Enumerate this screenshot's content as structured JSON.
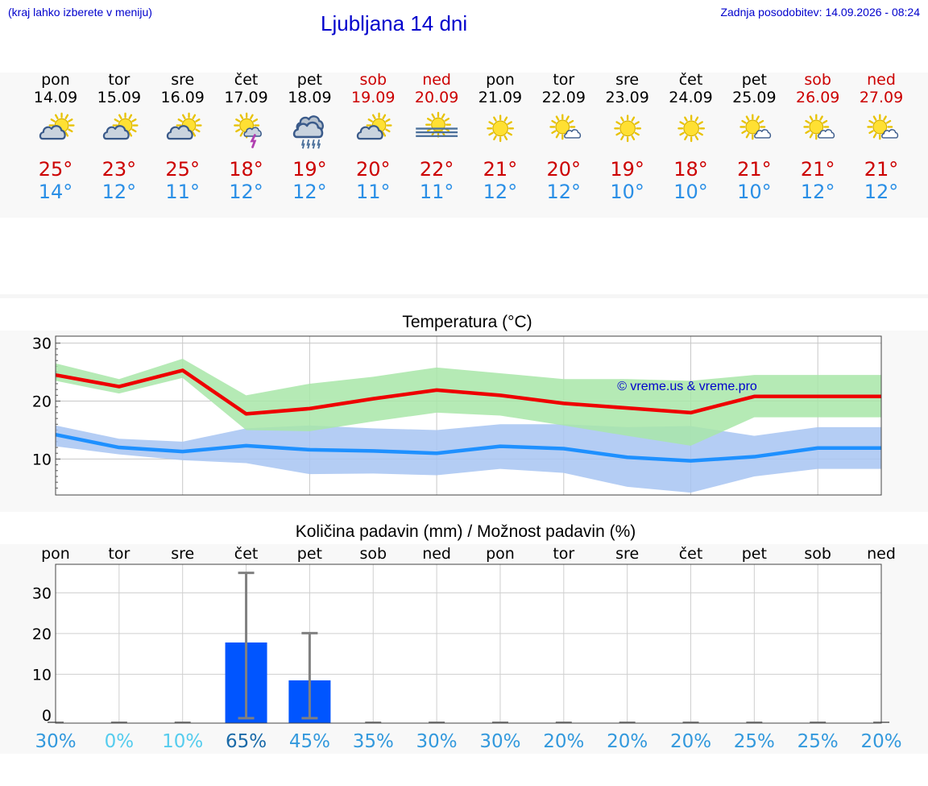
{
  "header": {
    "menu_hint": "(kraj lahko izberete v meniju)",
    "title": "Ljubljana 14 dni",
    "last_update": "Zadnja posodobitev: 14.09.2026 - 08:24"
  },
  "forecast": {
    "days": [
      {
        "name": "pon",
        "date": "14.09",
        "weekend": false,
        "icon": "sun-cloud-icon",
        "hi": "25°",
        "lo": "14°"
      },
      {
        "name": "tor",
        "date": "15.09",
        "weekend": false,
        "icon": "sun-cloud-icon",
        "hi": "23°",
        "lo": "12°"
      },
      {
        "name": "sre",
        "date": "16.09",
        "weekend": false,
        "icon": "sun-cloud-icon",
        "hi": "25°",
        "lo": "11°"
      },
      {
        "name": "čet",
        "date": "17.09",
        "weekend": false,
        "icon": "sun-thunder-icon",
        "hi": "18°",
        "lo": "12°"
      },
      {
        "name": "pet",
        "date": "18.09",
        "weekend": false,
        "icon": "rain-cloud-icon",
        "hi": "19°",
        "lo": "12°"
      },
      {
        "name": "sob",
        "date": "19.09",
        "weekend": true,
        "icon": "sun-cloud-icon",
        "hi": "20°",
        "lo": "11°"
      },
      {
        "name": "ned",
        "date": "20.09",
        "weekend": true,
        "icon": "sun-fog-icon",
        "hi": "22°",
        "lo": "11°"
      },
      {
        "name": "pon",
        "date": "21.09",
        "weekend": false,
        "icon": "sun-icon",
        "hi": "21°",
        "lo": "12°"
      },
      {
        "name": "tor",
        "date": "22.09",
        "weekend": false,
        "icon": "sun-small-cloud-icon",
        "hi": "20°",
        "lo": "12°"
      },
      {
        "name": "sre",
        "date": "23.09",
        "weekend": false,
        "icon": "sun-icon",
        "hi": "19°",
        "lo": "10°"
      },
      {
        "name": "čet",
        "date": "24.09",
        "weekend": false,
        "icon": "sun-icon",
        "hi": "18°",
        "lo": "10°"
      },
      {
        "name": "pet",
        "date": "25.09",
        "weekend": false,
        "icon": "sun-small-cloud-icon",
        "hi": "21°",
        "lo": "10°"
      },
      {
        "name": "sob",
        "date": "26.09",
        "weekend": true,
        "icon": "sun-small-cloud-icon",
        "hi": "21°",
        "lo": "12°"
      },
      {
        "name": "ned",
        "date": "27.09",
        "weekend": true,
        "icon": "sun-small-cloud-icon",
        "hi": "21°",
        "lo": "12°"
      }
    ]
  },
  "colors": {
    "title_blue": "#0000cc",
    "weekend_red": "#cc0000",
    "hi_red": "#cc0000",
    "lo_blue": "#2a8fe6",
    "max_line": "#ee0000",
    "min_line": "#1e90ff",
    "max_band": "#a8e6a8",
    "min_band": "#a7c4f2",
    "bar_blue": "#0055ff",
    "error_gray": "#808080",
    "prob_dark": "#1a6aa8",
    "prob_mid": "#3399dd",
    "prob_light": "#55ccee",
    "watermark": "#0000cc"
  },
  "chart_data": [
    {
      "type": "line",
      "title": "Temperatura (°C)",
      "watermark": "© vreme.us & vreme.pro",
      "ylim": [
        3.8,
        31.2
      ],
      "yticks": [
        10,
        20,
        30
      ],
      "grid": true,
      "x": [
        "14.09",
        "15.09",
        "16.09",
        "17.09",
        "18.09",
        "19.09",
        "20.09",
        "21.09",
        "22.09",
        "23.09",
        "24.09",
        "25.09",
        "26.09",
        "27.09"
      ],
      "series": [
        {
          "role": "max",
          "values": [
            24.5,
            22.5,
            25.3,
            17.8,
            18.7,
            20.4,
            21.9,
            21.0,
            19.6,
            18.8,
            18.0,
            20.8,
            20.8,
            20.8
          ]
        },
        {
          "role": "min",
          "values": [
            14.2,
            12.0,
            11.3,
            12.3,
            11.6,
            11.4,
            11.0,
            12.2,
            11.8,
            10.3,
            9.7,
            10.4,
            11.9,
            11.9
          ]
        },
        {
          "role": "max_range",
          "low": [
            23.5,
            21.3,
            24.0,
            15.0,
            14.8,
            16.5,
            18.0,
            17.5,
            15.8,
            14.0,
            12.3,
            17.2,
            17.2,
            17.2
          ],
          "high": [
            26.5,
            23.8,
            27.3,
            21.0,
            23.0,
            24.2,
            25.8,
            24.8,
            23.8,
            23.8,
            23.5,
            24.5,
            24.5,
            24.5
          ]
        },
        {
          "role": "min_range",
          "low": [
            12.2,
            10.8,
            9.8,
            9.3,
            7.4,
            7.5,
            7.2,
            8.3,
            7.6,
            5.2,
            4.2,
            7.0,
            8.3,
            8.3
          ],
          "high": [
            15.8,
            13.5,
            13.0,
            15.3,
            15.8,
            15.3,
            15.0,
            16.0,
            16.0,
            15.5,
            15.7,
            14.0,
            15.5,
            15.5
          ]
        }
      ]
    },
    {
      "type": "bar",
      "title": "Količina padavin (mm) / Možnost padavin (%)",
      "ylim": [
        -2,
        37
      ],
      "yticks": [
        0,
        10,
        20,
        30
      ],
      "grid": true,
      "categories": [
        "pon",
        "tor",
        "sre",
        "čet",
        "pet",
        "sob",
        "ned",
        "pon",
        "tor",
        "sre",
        "čet",
        "pet",
        "sob",
        "ned"
      ],
      "values": [
        0,
        0,
        0,
        17.8,
        8.5,
        0,
        0,
        0,
        0,
        0,
        0,
        0,
        0,
        0
      ],
      "error_high": [
        0,
        0,
        0,
        34.9,
        20.1,
        0,
        0,
        0,
        0,
        0,
        0,
        0,
        0,
        0
      ],
      "error_low": [
        0,
        0,
        0,
        0,
        0,
        0,
        0,
        0,
        0,
        0,
        0,
        0,
        0,
        0
      ],
      "probability": [
        "30%",
        "0%",
        "10%",
        "65%",
        "45%",
        "35%",
        "30%",
        "30%",
        "20%",
        "20%",
        "20%",
        "25%",
        "25%",
        "20%"
      ],
      "probability_values": [
        30,
        0,
        10,
        65,
        45,
        35,
        30,
        30,
        20,
        20,
        20,
        25,
        25,
        20
      ]
    }
  ]
}
